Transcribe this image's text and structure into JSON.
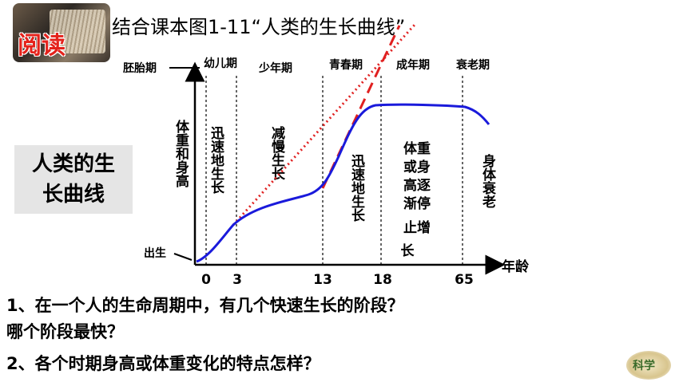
{
  "header": {
    "badge_text": "阅读",
    "title": "结合课本图1-11“人类的生长曲线”"
  },
  "side_label": {
    "line1": "人类的生",
    "line2": "长曲线"
  },
  "diagram": {
    "periods": [
      "胚胎期",
      "幼儿期",
      "少年期",
      "青春期",
      "成年期",
      "衰老期"
    ],
    "y_axis_label": "体重和身高",
    "birth_label": "出生",
    "x_axis_label": "年龄",
    "ages": [
      "0",
      "3",
      "13",
      "18",
      "65"
    ],
    "stage_notes": [
      "迅速地生长",
      "减慢生长",
      "迅速地生长",
      "体重或身高逐渐停止增长",
      "身体衰老"
    ]
  },
  "questions": [
    "1、在一个人的生命周期中，有几个快速生长的阶段？",
    "哪个阶段最快？",
    "2、各个时期身高或体重变化的特点怎样？"
  ],
  "logo_text": "科学",
  "colors": {
    "curve": "#1a1adb",
    "dashed": "#e02020",
    "badge_text": "#e4221b"
  }
}
